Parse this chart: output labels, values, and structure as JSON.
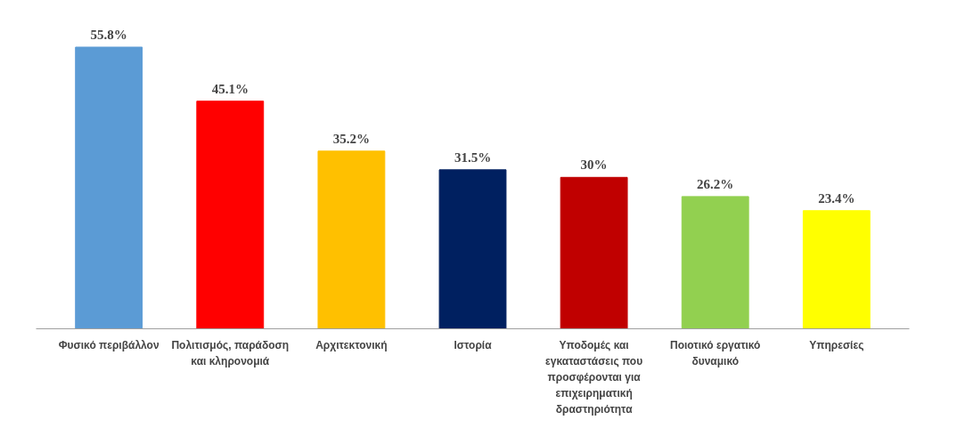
{
  "chart_data": {
    "type": "bar",
    "categories": [
      "Φυσικό περιβάλλον",
      "Πολιτισμός, παράδοση και κληρονομιά",
      "Αρχιτεκτονική",
      "Ιστορία",
      "Υποδομές και εγκαταστάσεις που προσφέρονται για επιχειρηματική δραστηριότητα",
      "Ποιοτικό εργατικό δυναμικό",
      "Υπηρεσίες"
    ],
    "values": [
      55.8,
      45.1,
      35.2,
      31.5,
      30,
      26.2,
      23.4
    ],
    "colors": [
      "#5b9bd5",
      "#ff0000",
      "#ffc000",
      "#002060",
      "#c00000",
      "#92d050",
      "#ffff00"
    ],
    "value_labels": [
      "55.8%",
      "45.1%",
      "35.2%",
      "31.5%",
      "30%",
      "26.2%",
      "23.4%"
    ],
    "tick_labels": "x"
  }
}
